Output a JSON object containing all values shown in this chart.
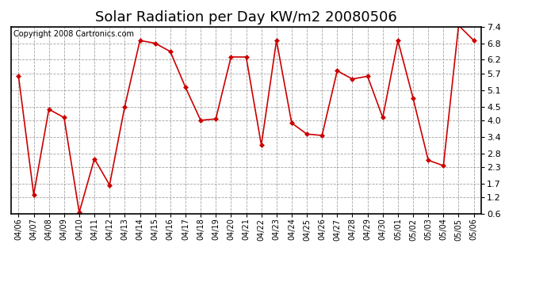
{
  "title": "Solar Radiation per Day KW/m2 20080506",
  "copyright": "Copyright 2008 Cartronics.com",
  "dates": [
    "04/06",
    "04/07",
    "04/08",
    "04/09",
    "04/10",
    "04/11",
    "04/12",
    "04/13",
    "04/14",
    "04/15",
    "04/16",
    "04/17",
    "04/18",
    "04/19",
    "04/20",
    "04/21",
    "04/22",
    "04/23",
    "04/24",
    "04/25",
    "04/26",
    "04/27",
    "04/28",
    "04/29",
    "04/30",
    "05/01",
    "05/02",
    "05/03",
    "05/04",
    "05/05",
    "05/06"
  ],
  "values": [
    5.6,
    1.3,
    4.4,
    4.1,
    0.65,
    2.6,
    1.65,
    4.5,
    6.9,
    6.8,
    6.5,
    5.2,
    4.0,
    4.05,
    6.3,
    6.3,
    3.1,
    6.9,
    3.9,
    3.5,
    3.45,
    5.8,
    5.5,
    5.6,
    4.1,
    6.9,
    4.8,
    2.55,
    2.35,
    7.45,
    6.9
  ],
  "line_color": "#cc0000",
  "marker": "D",
  "marker_size": 3.0,
  "bg_color": "#ffffff",
  "grid_color": "#999999",
  "ylim": [
    0.6,
    7.4
  ],
  "yticks": [
    0.6,
    1.2,
    1.7,
    2.3,
    2.8,
    3.4,
    4.0,
    4.5,
    5.1,
    5.7,
    6.2,
    6.8,
    7.4
  ],
  "title_fontsize": 13,
  "copyright_fontsize": 7,
  "tick_fontsize": 8,
  "xlabel_fontsize": 7
}
